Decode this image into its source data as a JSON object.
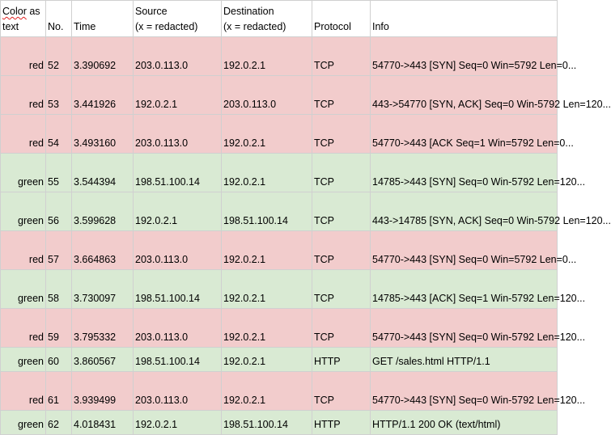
{
  "headers": {
    "color_line1": "Color",
    "color_line1b": " as",
    "color_line2": "text",
    "no": "No.",
    "time": "Time",
    "source_line1": "Source",
    "source_line2": "(x = redacted)",
    "destination_line1": "Destination",
    "destination_line2": "(x = redacted)",
    "protocol": "Protocol",
    "info": "Info"
  },
  "colors": {
    "red": "#f2cccc",
    "green": "#d9ead3",
    "spell_underline": "#e02020"
  },
  "rows": [
    {
      "color": "red",
      "no": "52",
      "time": "3.390692",
      "source": "203.0.113.0",
      "destination": "192.0.2.1",
      "protocol": "TCP",
      "info": "54770->443 [SYN] Seq=0 Win=5792 Len=0..."
    },
    {
      "color": "red",
      "no": "53",
      "time": "3.441926",
      "source": "192.0.2.1",
      "destination": "203.0.113.0",
      "protocol": "TCP",
      "info": "443->54770 [SYN, ACK] Seq=0 Win-5792 Len=120..."
    },
    {
      "color": "red",
      "no": "54",
      "time": "3.493160",
      "source": "203.0.113.0",
      "destination": "192.0.2.1",
      "protocol": "TCP",
      "info": "54770->443 [ACK Seq=1 Win=5792 Len=0..."
    },
    {
      "color": "green",
      "no": "55",
      "time": "3.544394",
      "source": "198.51.100.14",
      "destination": "192.0.2.1",
      "protocol": "TCP",
      "info": "14785->443 [SYN] Seq=0 Win-5792 Len=120..."
    },
    {
      "color": "green",
      "no": "56",
      "time": "3.599628",
      "source": "192.0.2.1",
      "destination": "198.51.100.14",
      "protocol": "TCP",
      "info": "443->14785 [SYN, ACK] Seq=0 Win-5792 Len=120..."
    },
    {
      "color": "red",
      "no": "57",
      "time": "3.664863",
      "source": "203.0.113.0",
      "destination": "192.0.2.1",
      "protocol": "TCP",
      "info": "54770->443 [SYN] Seq=0 Win=5792 Len=0..."
    },
    {
      "color": "green",
      "no": "58",
      "time": "3.730097",
      "source": "198.51.100.14",
      "destination": "192.0.2.1",
      "protocol": "TCP",
      "info": "14785->443 [ACK] Seq=1 Win-5792 Len=120..."
    },
    {
      "color": "red",
      "no": "59",
      "time": "3.795332",
      "source": "203.0.113.0",
      "destination": "192.0.2.1",
      "protocol": "TCP",
      "info": "54770->443 [SYN] Seq=0 Win-5792 Len=120..."
    },
    {
      "color": "green",
      "no": "60",
      "time": "3.860567",
      "source": "198.51.100.14",
      "destination": "192.0.2.1",
      "protocol": "HTTP",
      "info": "GET /sales.html HTTP/1.1"
    },
    {
      "color": "red",
      "no": "61",
      "time": "3.939499",
      "source": "203.0.113.0",
      "destination": "192.0.2.1",
      "protocol": "TCP",
      "info": "54770->443 [SYN] Seq=0 Win-5792 Len=120..."
    },
    {
      "color": "green",
      "no": "62",
      "time": "4.018431",
      "source": "192.0.2.1",
      "destination": "198.51.100.14",
      "protocol": "HTTP",
      "info": "HTTP/1.1 200 OK (text/html)"
    }
  ]
}
